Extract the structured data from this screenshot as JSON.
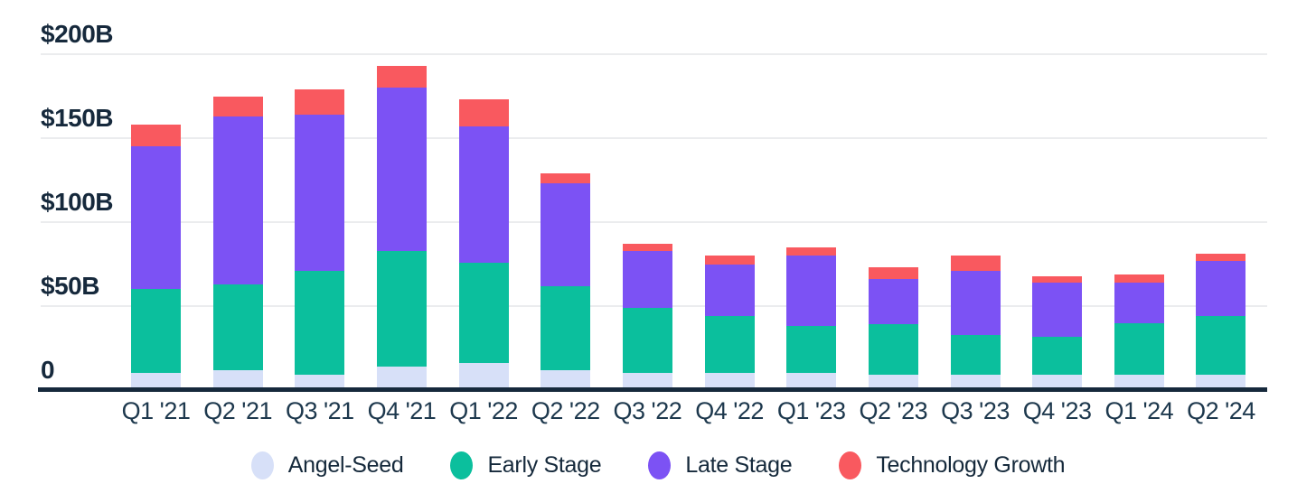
{
  "chart_data": {
    "type": "bar",
    "stacked": true,
    "unit": "$B",
    "ylim": [
      0,
      200
    ],
    "grid": true,
    "legend_position": "bottom",
    "categories": [
      "Q1 '21",
      "Q2 '21",
      "Q3 '21",
      "Q4 '21",
      "Q1 '22",
      "Q2 '22",
      "Q3 '22",
      "Q4 '22",
      "Q1 '23",
      "Q2 '23",
      "Q3 '23",
      "Q4 '23",
      "Q1 '24",
      "Q2 '24"
    ],
    "yticks": [
      {
        "label": "$200B",
        "value": 200
      },
      {
        "label": "$150B",
        "value": 150
      },
      {
        "label": "$100B",
        "value": 100
      },
      {
        "label": "$50B",
        "value": 50
      },
      {
        "label": "0",
        "value": 0
      }
    ],
    "series": [
      {
        "name": "Angel-Seed",
        "color": "#d7e0f8",
        "values": [
          10,
          12,
          9,
          14,
          16,
          12,
          10,
          10,
          10,
          9,
          9,
          9,
          9,
          9
        ]
      },
      {
        "name": "Early Stage",
        "color": "#0bbf9d",
        "values": [
          50,
          51,
          62,
          69,
          60,
          50,
          39,
          34,
          28,
          30,
          24,
          23,
          31,
          35
        ]
      },
      {
        "name": "Late Stage",
        "color": "#7c52f4",
        "values": [
          85,
          100,
          93,
          97,
          81,
          61,
          34,
          31,
          42,
          27,
          38,
          32,
          24,
          33
        ]
      },
      {
        "name": "Technology Growth",
        "color": "#f9595f",
        "values": [
          13,
          12,
          15,
          13,
          16,
          6,
          4,
          5,
          5,
          7,
          9,
          4,
          5,
          4
        ]
      }
    ],
    "totals": [
      158,
      175,
      179,
      193,
      173,
      129,
      87,
      80,
      85,
      73,
      80,
      68,
      69,
      81
    ]
  },
  "colors": {
    "background": "#ffffff",
    "gridline": "#ebecee",
    "axis_line": "#16293c",
    "tick_text": "#1d384d",
    "legend_text": "#15293b"
  }
}
